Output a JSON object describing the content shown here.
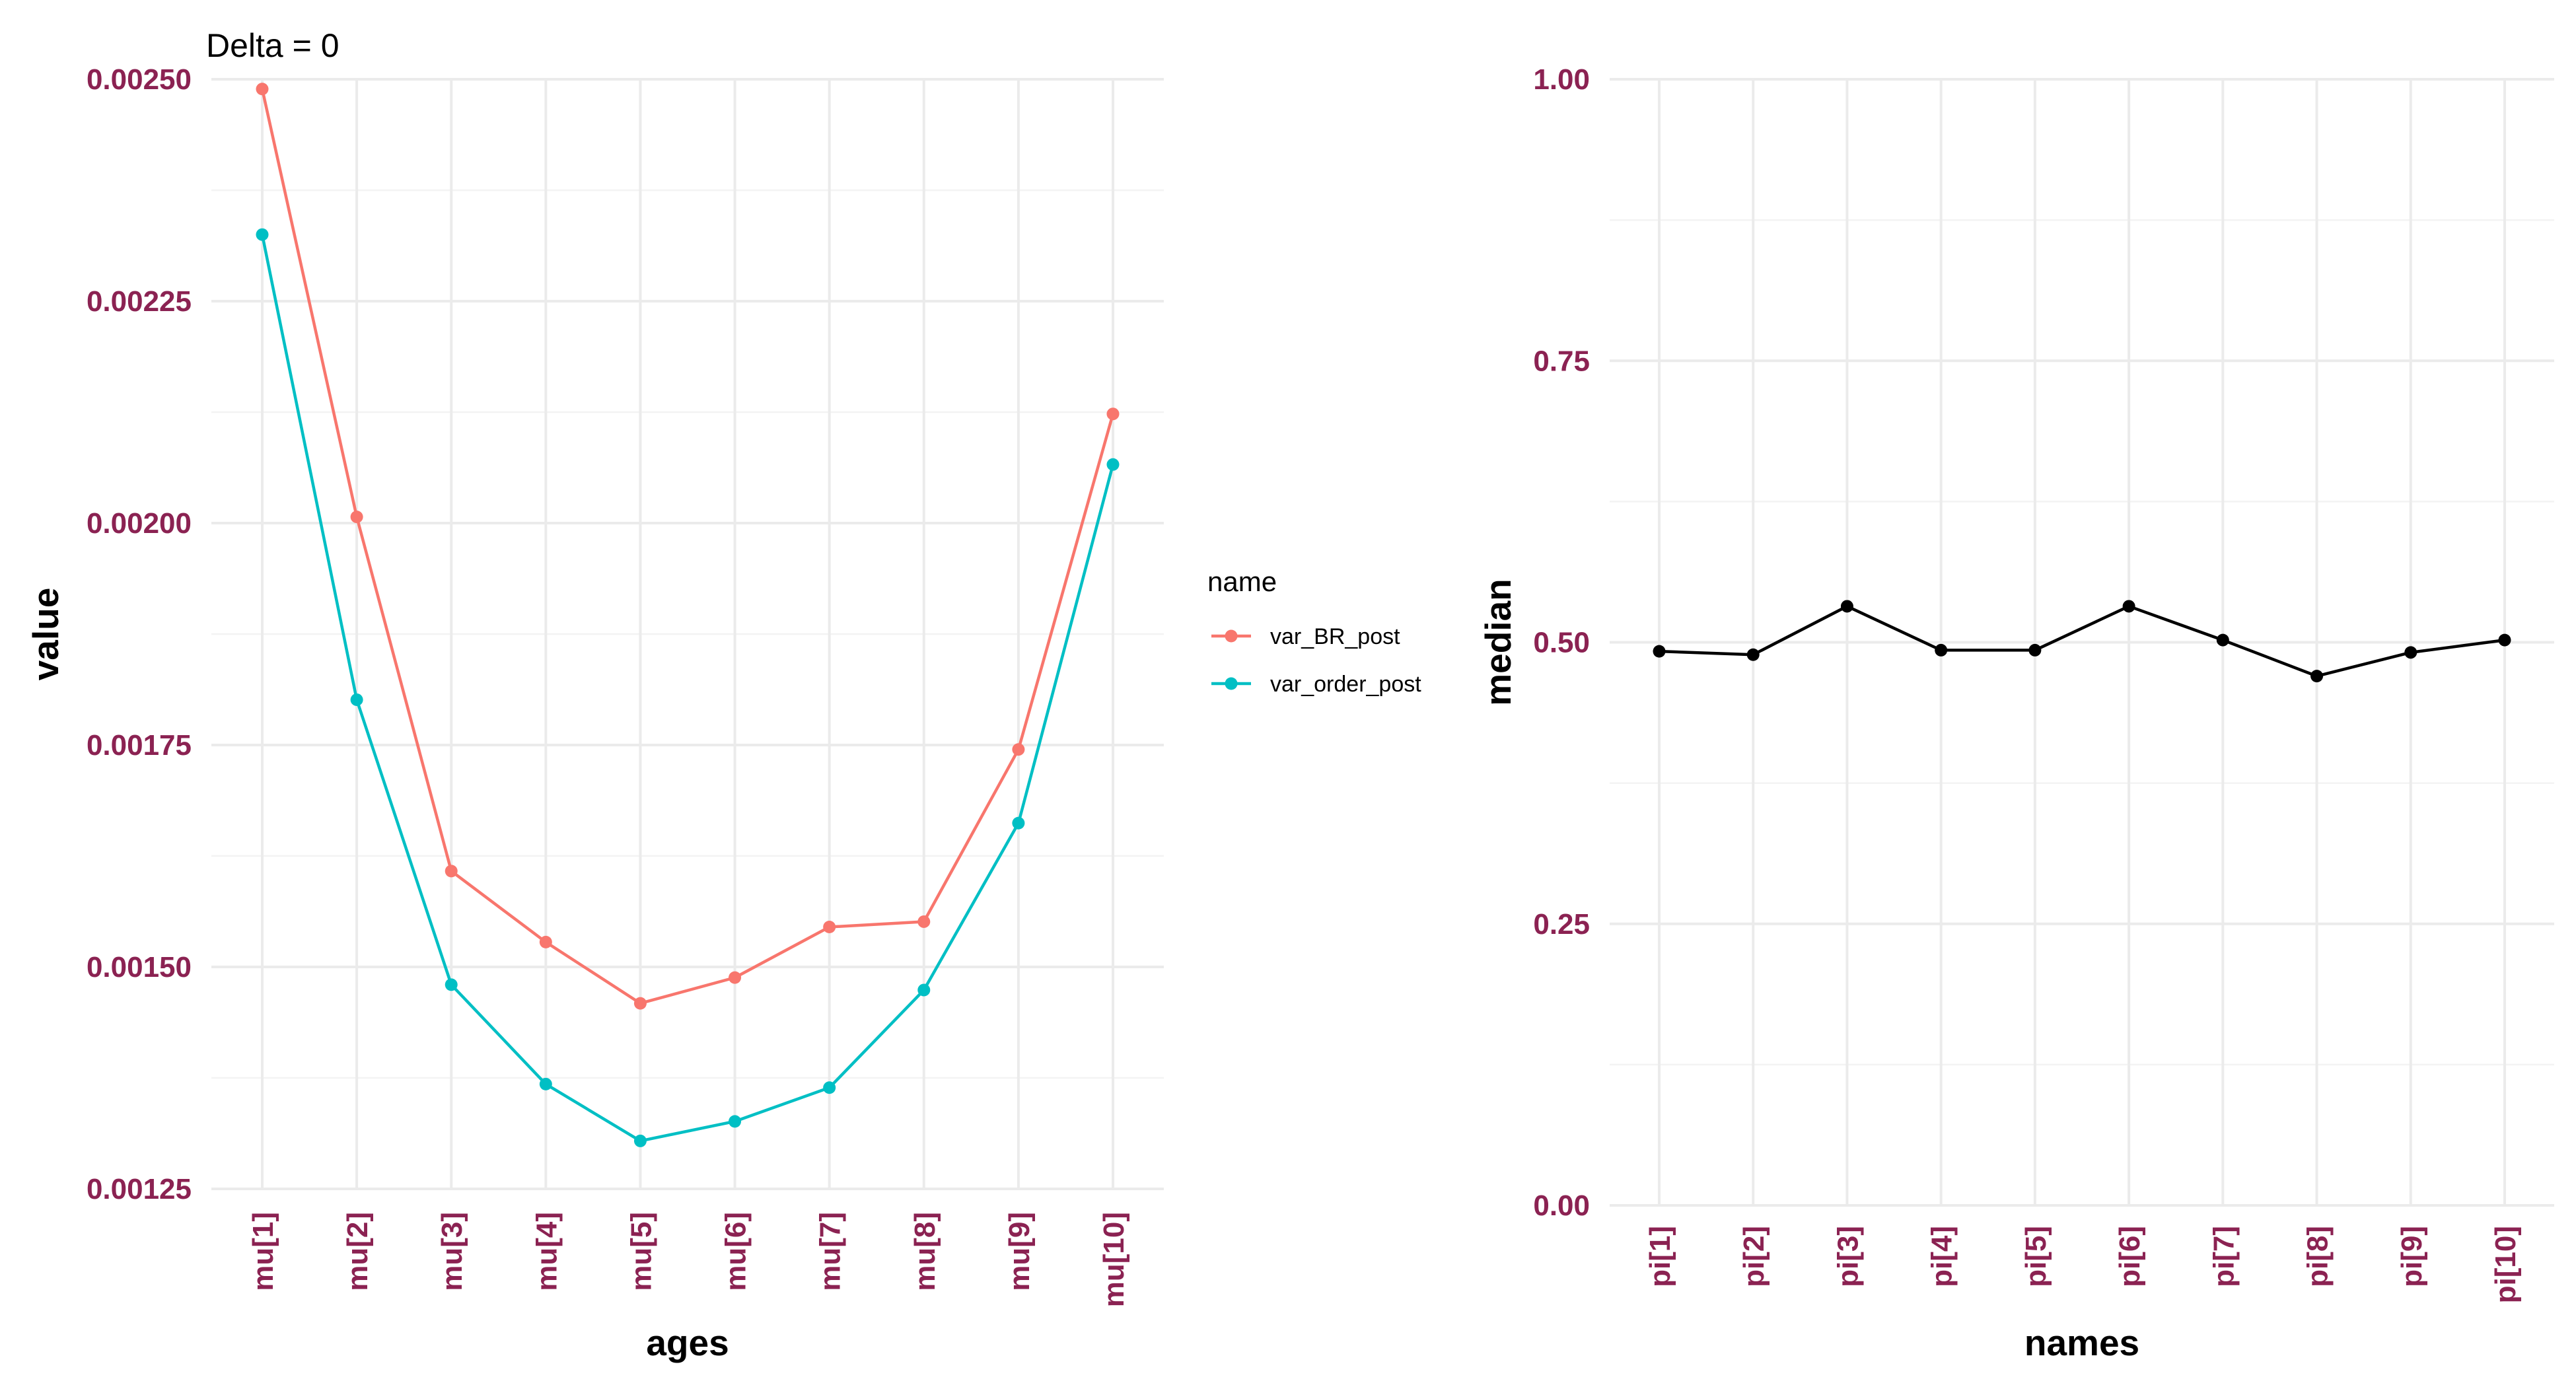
{
  "chart_data": [
    {
      "type": "line",
      "title": "Delta = 0",
      "xlabel": "ages",
      "ylabel": "value",
      "categories": [
        "mu[1]",
        "mu[2]",
        "mu[3]",
        "mu[4]",
        "mu[5]",
        "mu[6]",
        "mu[7]",
        "mu[8]",
        "mu[9]",
        "mu[10]"
      ],
      "ylim": [
        0.00125,
        0.0025
      ],
      "yticks": [
        "0.00125",
        "0.00150",
        "0.00175",
        "0.00200",
        "0.00225",
        "0.00250"
      ],
      "grid": true,
      "legend": {
        "title": "name",
        "position": "right"
      },
      "series": [
        {
          "name": "var_BR_post",
          "color": "#f8766d",
          "values": [
            0.002489,
            0.002007,
            0.001608,
            0.001528,
            0.001459,
            0.001488,
            0.001545,
            0.001551,
            0.001745,
            0.002123
          ]
        },
        {
          "name": "var_order_post",
          "color": "#00bfc4",
          "values": [
            0.002325,
            0.001801,
            0.00148,
            0.001368,
            0.001304,
            0.001326,
            0.001364,
            0.001474,
            0.001662,
            0.002066
          ]
        }
      ]
    },
    {
      "type": "line",
      "title": "",
      "xlabel": "names",
      "ylabel": "median",
      "categories": [
        "pi[1]",
        "pi[2]",
        "pi[3]",
        "pi[4]",
        "pi[5]",
        "pi[6]",
        "pi[7]",
        "pi[8]",
        "pi[9]",
        "pi[10]"
      ],
      "ylim": [
        0,
        1
      ],
      "yticks": [
        "0.00",
        "0.25",
        "0.50",
        "0.75",
        "1.00"
      ],
      "grid": true,
      "series": [
        {
          "color": "#000000",
          "values": [
            0.492,
            0.489,
            0.532,
            0.493,
            0.493,
            0.532,
            0.502,
            0.47,
            0.491,
            0.502
          ]
        }
      ]
    }
  ]
}
